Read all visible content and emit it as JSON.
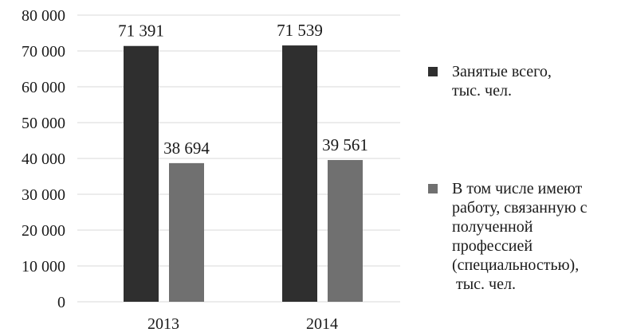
{
  "chart_data": {
    "type": "bar",
    "categories": [
      "2013",
      "2014"
    ],
    "series": [
      {
        "name": "Занятые всего,\nтыс. чел.",
        "values": [
          71391,
          71539
        ],
        "labels": [
          "71 391",
          "71 539"
        ],
        "color": "#2f2f2f"
      },
      {
        "name": "В том числе имеют\nработу, связанную с\nполученной\nпрофессией\n(специальностью),\n тыс. чел.",
        "values": [
          38694,
          39561
        ],
        "labels": [
          "38 694",
          "39 561"
        ],
        "color": "#707070"
      }
    ],
    "ylim": [
      0,
      80000
    ],
    "yticks": [
      0,
      10000,
      20000,
      30000,
      40000,
      50000,
      60000,
      70000,
      80000
    ],
    "ytick_labels": [
      "0",
      "10 000",
      "20 000",
      "30 000",
      "40 000",
      "50 000",
      "60 000",
      "70 000",
      "80 000"
    ],
    "grid": true,
    "gridline_color": "#d9d9d9",
    "legend_position": "right"
  }
}
